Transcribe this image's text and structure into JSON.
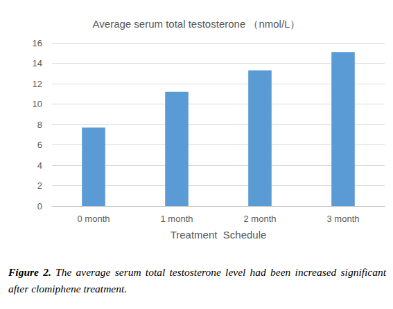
{
  "chart_data": {
    "type": "bar",
    "title": "Average serum total testosterone （nmol/L）",
    "x_label": "Treatment  Schedule",
    "categories": [
      "0 month",
      "1 month",
      "2 month",
      "3 month"
    ],
    "values": [
      7.7,
      11.2,
      13.3,
      15.1
    ],
    "color": "#5b9bd5",
    "ylim": [
      0,
      16
    ],
    "yticks": [
      0,
      2,
      4,
      6,
      8,
      10,
      12,
      14,
      16
    ],
    "grid": true,
    "caption_label": "Figure 2.",
    "caption": "The average serum total testosterone level had been increased significant after clomiphene treatment."
  }
}
